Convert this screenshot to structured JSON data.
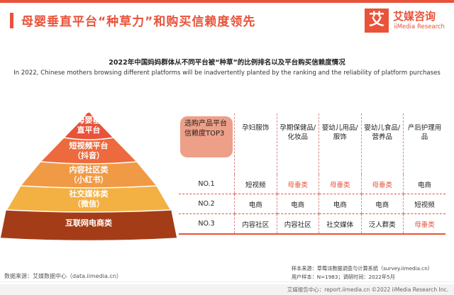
{
  "header": {
    "title": "母婴垂直平台“种草力”和购买信赖度领先",
    "logo_mark": "艾",
    "logo_cn": "艾媒咨询",
    "logo_en": "iiMedia Research"
  },
  "subtitle_cn": "2022年中国妈妈群体从不同平台被“种草”的比例排名以及平台购买信赖度情况",
  "subtitle_en": "In 2022, Chinese mothers browsing different platforms will be inadvertently planted by the ranking and the reliability of platform purchases",
  "pyramid": [
    {
      "label1": "母婴垂",
      "label2": "直平台",
      "color": "#e8533a"
    },
    {
      "label1": "短视频平台",
      "label2": "（抖音）",
      "color": "#ec6a3d"
    },
    {
      "label1": "内容社区类",
      "label2": "（小红书）",
      "color": "#f19a45"
    },
    {
      "label1": "社交媒体类",
      "label2": "（微信）",
      "color": "#f3b043"
    },
    {
      "label1": "互联网电商类",
      "label2": "",
      "color": "#a43d17"
    }
  ],
  "chart_data": {
    "type": "table",
    "corner_label": "选购产品平台信赖度TOP3",
    "columns": [
      "孕妇服饰",
      "孕期保健品/化妆品",
      "婴幼儿用品/服饰",
      "婴幼儿食品/营养品",
      "产后护理用品"
    ],
    "rows": [
      {
        "rank": "NO.1",
        "values": [
          "短视频",
          "母垂类",
          "母垂类",
          "母垂类",
          "电商"
        ]
      },
      {
        "rank": "NO.2",
        "values": [
          "电商",
          "电商",
          "电商",
          "电商",
          "短视频"
        ]
      },
      {
        "rank": "NO.3",
        "values": [
          "内容社区",
          "内容社区",
          "社交媒体",
          "泛人群类",
          "母垂类"
        ]
      }
    ],
    "highlight_value": "母垂类",
    "highlight_color": "#e8533a"
  },
  "footer": {
    "source": "数据来源：艾媒数据中心（data.iimedia.cn）",
    "sample_source": "样本来源：草莓派数据调查与计算系统（survey.iimedia.cn）",
    "sample_info": "用户样本：N=1983；调研时间：2022年5月",
    "copyright": "艾媒报告中心：report.iimedia.cn  ©2022  iiMedia Research  Inc."
  }
}
